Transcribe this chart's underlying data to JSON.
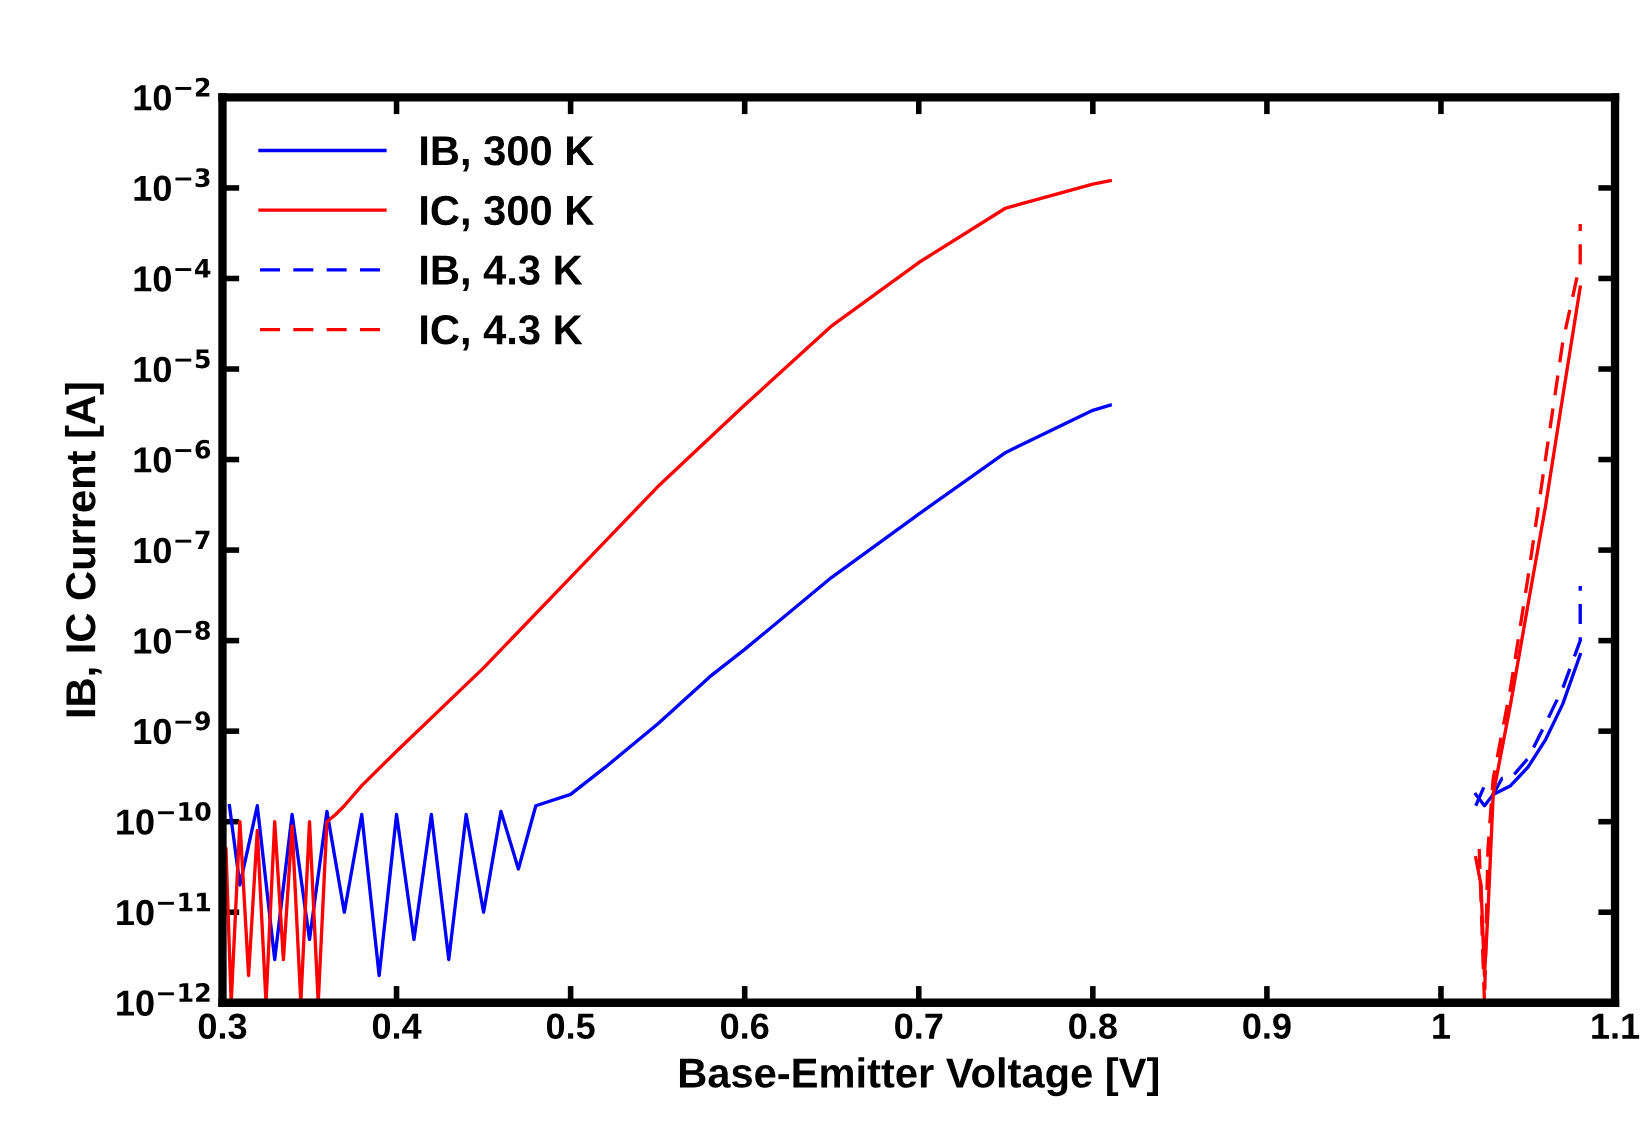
{
  "chart_data": {
    "type": "line",
    "xlabel": "Base-Emitter Voltage [V]",
    "ylabel": "IB, IC Current [A]",
    "log": "y",
    "xlim": [
      0.3,
      1.1
    ],
    "xticks": [
      0.3,
      0.4,
      0.5,
      0.6,
      0.7,
      0.8,
      0.9,
      1,
      1.1
    ],
    "ylim": [
      1e-12,
      0.01
    ],
    "yticks": [
      {
        "value": 1e-12,
        "label": "10$^{−12}$"
      },
      {
        "value": 1e-11,
        "label": "10$^{−11}$"
      },
      {
        "value": 1e-10,
        "label": "10$^{−10}$"
      },
      {
        "value": 1e-09,
        "label": "10$^{−9}$"
      },
      {
        "value": 1e-08,
        "label": "10$^{−8}$"
      },
      {
        "value": 1e-07,
        "label": "10$^{−7}$"
      },
      {
        "value": 1e-06,
        "label": "10$^{−6}$"
      },
      {
        "value": 1e-05,
        "label": "10$^{−5}$"
      },
      {
        "value": 0.0001,
        "label": "10$^{−4}$"
      },
      {
        "value": 0.001,
        "label": "10$^{−3}$"
      },
      {
        "value": 0.01,
        "label": "10$^{−2}$"
      }
    ],
    "grid": false,
    "legend": "top left",
    "series": [
      {
        "name": "IB, 300 K",
        "color": "#0000ff",
        "line_style": "solid",
        "x": [
          0.304,
          0.31,
          0.32,
          0.33,
          0.34,
          0.35,
          0.36,
          0.37,
          0.38,
          0.39,
          0.4,
          0.41,
          0.42,
          0.43,
          0.44,
          0.45,
          0.46,
          0.47,
          0.48,
          0.5,
          0.52,
          0.55,
          0.58,
          0.6,
          0.65,
          0.7,
          0.75,
          0.8,
          0.81
        ],
        "values": [
          1.5e-10,
          2e-11,
          1.5e-10,
          3e-12,
          1.2e-10,
          5e-12,
          1.3e-10,
          1e-11,
          1.2e-10,
          2e-12,
          1.2e-10,
          5e-12,
          1.2e-10,
          3e-12,
          1.2e-10,
          1e-11,
          1.3e-10,
          3e-11,
          1.5e-10,
          2e-10,
          4e-10,
          1.2e-09,
          4e-09,
          8e-09,
          5e-08,
          2.5e-07,
          1.2e-06,
          3.5e-06,
          4e-06
        ]
      },
      {
        "name": "IC, 300 K",
        "color": "#ff0000",
        "line_style": "solid",
        "x": [
          0.302,
          0.305,
          0.31,
          0.315,
          0.32,
          0.325,
          0.33,
          0.335,
          0.34,
          0.345,
          0.35,
          0.355,
          0.36,
          0.365,
          0.37,
          0.38,
          0.4,
          0.45,
          0.5,
          0.55,
          0.6,
          0.65,
          0.7,
          0.75,
          0.8,
          0.81
        ],
        "values": [
          5e-11,
          1e-12,
          1e-10,
          2e-12,
          8e-11,
          1e-12,
          1e-10,
          3e-12,
          9e-11,
          1e-12,
          1e-10,
          1e-12,
          1e-10,
          1.2e-10,
          1.5e-10,
          2.5e-10,
          6e-10,
          5e-09,
          5e-08,
          5e-07,
          4e-06,
          3e-05,
          0.00015,
          0.0006,
          0.0011,
          0.0012
        ]
      },
      {
        "name": "IB, 4.3 K",
        "color": "#0000ff",
        "line_style": "dashed",
        "x": [
          1.02,
          1.025,
          1.03,
          1.035,
          1.04,
          1.05,
          1.06,
          1.07,
          1.08,
          1.08
        ],
        "values": [
          1.5e-10,
          2.5e-10,
          2e-10,
          3e-10,
          3e-10,
          5e-10,
          1.2e-09,
          3e-09,
          1e-08,
          4e-08
        ]
      },
      {
        "name": "IC, 4.3 K",
        "color": "#ff0000",
        "line_style": "dashed",
        "x": [
          1.022,
          1.025,
          1.027,
          1.03,
          1.04,
          1.05,
          1.06,
          1.07,
          1.08,
          1.08
        ],
        "values": [
          5e-11,
          1e-12,
          5e-11,
          3e-10,
          3e-09,
          5e-08,
          1e-06,
          2e-05,
          0.00015,
          0.0004
        ]
      },
      {
        "color": "#0000ff",
        "line_style": "solid",
        "x": [
          1.02,
          1.025,
          1.03,
          1.04,
          1.05,
          1.06,
          1.07,
          1.08
        ],
        "values": [
          2e-10,
          1.5e-10,
          2e-10,
          2.5e-10,
          4e-10,
          8e-10,
          2e-09,
          7e-09
        ]
      },
      {
        "color": "#ff0000",
        "line_style": "solid",
        "x": [
          1.02,
          1.023,
          1.025,
          1.027,
          1.03,
          1.04,
          1.05,
          1.06,
          1.07,
          1.08
        ],
        "values": [
          4e-11,
          2e-11,
          2e-12,
          1e-11,
          2e-10,
          2e-09,
          2.5e-08,
          3e-07,
          5e-06,
          8e-05
        ]
      }
    ]
  }
}
